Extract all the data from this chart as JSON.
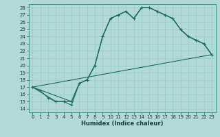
{
  "xlabel": "Humidex (Indice chaleur)",
  "bg_color": "#b2d8d8",
  "grid_color": "#8fc8c8",
  "line_color": "#1a6b5a",
  "xlim": [
    -0.5,
    23.5
  ],
  "ylim": [
    13.5,
    28.5
  ],
  "xticks": [
    0,
    1,
    2,
    3,
    4,
    5,
    6,
    7,
    8,
    9,
    10,
    11,
    12,
    13,
    14,
    15,
    16,
    17,
    18,
    19,
    20,
    21,
    22,
    23
  ],
  "yticks": [
    14,
    15,
    16,
    17,
    18,
    19,
    20,
    21,
    22,
    23,
    24,
    25,
    26,
    27,
    28
  ],
  "line1_x": [
    0,
    1,
    2,
    3,
    4,
    5,
    6,
    7,
    8,
    9,
    10,
    11,
    12,
    13,
    14,
    15,
    16,
    17,
    18,
    19,
    20,
    21,
    22,
    23
  ],
  "line1_y": [
    17,
    16.5,
    15.5,
    15,
    15,
    14.5,
    17.5,
    18,
    20,
    24,
    26.5,
    27,
    27.5,
    26.5,
    28,
    28,
    27.5,
    27,
    26.5,
    25,
    24,
    23.5,
    23,
    21.5
  ],
  "line2_x": [
    0,
    3,
    4,
    5,
    6,
    7,
    8,
    9,
    10,
    11,
    12,
    13,
    14,
    15,
    16,
    17,
    18,
    19,
    20,
    21,
    22,
    23
  ],
  "line2_y": [
    17,
    15,
    15,
    15,
    17.5,
    18,
    20,
    24,
    26.5,
    27,
    27.5,
    26.5,
    28,
    28,
    27.5,
    27,
    26.5,
    25,
    24,
    23.5,
    23,
    21.5
  ],
  "line3_x": [
    0,
    23
  ],
  "line3_y": [
    17,
    21.5
  ],
  "line4_x": [
    0,
    5,
    6,
    7,
    8,
    9,
    10,
    11,
    12,
    13,
    14,
    15,
    16,
    17,
    18,
    19,
    20,
    21,
    22,
    23
  ],
  "line4_y": [
    17,
    15,
    17.5,
    18,
    20,
    24,
    26.5,
    27,
    27.5,
    26.5,
    28,
    28,
    27.5,
    27,
    26.5,
    25,
    24,
    23.5,
    23,
    21.5
  ],
  "xlabel_fontsize": 6,
  "tick_fontsize": 5
}
